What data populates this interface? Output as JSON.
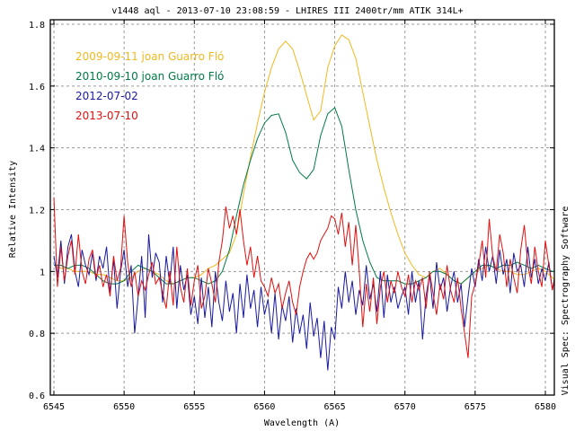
{
  "chart_data": {
    "type": "line",
    "title": "v1448 aql - 2013-07-10 23:08:59 - LHIRES III 2400tr/mm ATIK 314L+",
    "xlabel": "Wavelength (A)",
    "ylabel": "Relative Intensity",
    "side_note": "Visual Spec: Spectrography Software",
    "xlim": [
      6544.75,
      6581.4
    ],
    "ylim": [
      0.6,
      1.8
    ],
    "x_ticks": [
      6545,
      6550,
      6555,
      6560,
      6565,
      6570,
      6575,
      6580
    ],
    "y_ticks": [
      0.6,
      0.8,
      1,
      1.2,
      1.4,
      1.6,
      1.8
    ],
    "y_tick_labels": [
      "0.6",
      "0.8",
      "1",
      "1.2",
      "1.4",
      "1.6",
      "1.8"
    ],
    "grid": true,
    "legend_placement": "top-left",
    "series": [
      {
        "name": "2009-09-11 joan Guarro Fló",
        "color": "#f0b820",
        "x_start": 6545,
        "x_step": 0.5,
        "values": [
          1.02,
          1.01,
          1.01,
          1.0,
          1.0,
          1.0,
          0.99,
          0.99,
          0.98,
          0.97,
          0.97,
          0.98,
          1.0,
          1.01,
          1.0,
          0.99,
          0.97,
          0.96,
          0.97,
          0.98,
          0.98,
          0.99,
          1.01,
          1.02,
          1.04,
          1.06,
          1.12,
          1.25,
          1.37,
          1.48,
          1.58,
          1.66,
          1.72,
          1.745,
          1.72,
          1.65,
          1.57,
          1.49,
          1.52,
          1.66,
          1.73,
          1.765,
          1.75,
          1.69,
          1.58,
          1.47,
          1.36,
          1.27,
          1.19,
          1.12,
          1.06,
          1.02,
          0.99,
          0.98,
          1.0,
          1.01,
          0.99,
          0.97,
          0.96,
          0.98,
          1.0,
          1.01,
          1.02,
          1.01,
          1.0,
          1.0,
          0.99,
          0.99,
          1.0,
          1.01,
          1.0,
          0.98,
          0.96
        ]
      },
      {
        "name": "2010-09-10 joan Guarro Fló",
        "color": "#007a45",
        "x_start": 6545,
        "x_step": 0.5,
        "values": [
          1.02,
          1.02,
          1.01,
          1.02,
          1.02,
          1.01,
          0.99,
          0.97,
          0.96,
          0.96,
          0.97,
          1.0,
          1.02,
          1.01,
          1.0,
          0.98,
          0.96,
          0.96,
          0.97,
          0.98,
          0.98,
          0.97,
          0.96,
          0.97,
          1.0,
          1.07,
          1.18,
          1.28,
          1.36,
          1.43,
          1.48,
          1.505,
          1.51,
          1.45,
          1.36,
          1.32,
          1.3,
          1.33,
          1.44,
          1.51,
          1.53,
          1.47,
          1.33,
          1.2,
          1.1,
          1.03,
          0.98,
          0.97,
          0.97,
          0.97,
          0.96,
          0.96,
          0.97,
          0.98,
          1.0,
          1.0,
          0.99,
          0.97,
          0.96,
          0.98,
          1.0,
          1.02,
          1.02,
          1.01,
          1.02,
          1.02,
          1.03,
          1.02,
          1.01,
          1.02,
          1.01,
          1.0,
          1.0
        ]
      },
      {
        "name": "2012-07-02",
        "color": "#1a1aa0",
        "x_start": 6545,
        "x_step": 0.25,
        "values": [
          1.05,
          0.98,
          1.1,
          0.96,
          1.08,
          1.12,
          1.0,
          0.95,
          1.07,
          1.02,
          0.99,
          1.06,
          0.97,
          1.05,
          1.01,
          1.08,
          0.93,
          1.04,
          0.88,
          1.0,
          1.07,
          0.95,
          1.02,
          0.8,
          0.92,
          1.05,
          0.85,
          1.12,
          0.98,
          1.06,
          1.03,
          0.9,
          1.05,
          0.96,
          1.08,
          0.88,
          1.02,
          0.94,
          0.99,
          0.86,
          0.92,
          0.83,
          0.98,
          0.85,
          0.95,
          0.82,
          1.0,
          0.9,
          0.84,
          0.97,
          0.87,
          0.93,
          0.8,
          0.96,
          0.85,
          0.99,
          0.88,
          0.94,
          0.82,
          0.95,
          0.86,
          0.91,
          0.8,
          0.93,
          0.78,
          0.89,
          0.84,
          0.92,
          0.77,
          0.88,
          0.8,
          0.86,
          0.75,
          0.9,
          0.79,
          0.85,
          0.72,
          0.84,
          0.68,
          0.82,
          0.78,
          0.95,
          0.88,
          1.0,
          0.9,
          0.97,
          0.86,
          0.94,
          0.89,
          1.02,
          0.91,
          0.96,
          0.87,
          1.0,
          0.85,
          0.99,
          0.9,
          0.95,
          0.88,
          0.92,
          0.95,
          0.86,
          1.0,
          0.9,
          0.97,
          0.78,
          0.92,
          0.99,
          0.88,
          1.03,
          0.94,
          0.98,
          0.87,
          0.95,
          1.0,
          0.9,
          0.96,
          0.82,
          0.92,
          1.01,
          0.95,
          1.04,
          0.97,
          1.08,
          1.0,
          1.05,
          0.96,
          1.07,
          0.99,
          1.04,
          0.93,
          1.06,
          1.0,
          1.02,
          0.95,
          1.08,
          0.98,
          1.04,
          0.96,
          1.01,
          0.97,
          1.03,
          0.94,
          1.0,
          0.93
        ]
      },
      {
        "name": "2013-07-10",
        "color": "#e01010",
        "x_start": 6545,
        "x_step": 0.25,
        "values": [
          1.24,
          0.95,
          1.08,
          0.97,
          1.05,
          1.1,
          0.99,
          1.12,
          1.0,
          0.96,
          1.04,
          1.07,
          0.98,
          1.02,
          0.95,
          0.99,
          0.92,
          1.05,
          0.97,
          1.01,
          1.18,
          1.03,
          0.95,
          1.0,
          0.92,
          0.97,
          0.94,
          0.99,
          1.03,
          0.96,
          0.98,
          0.93,
          0.88,
          1.0,
          0.89,
          1.08,
          0.95,
          0.9,
          1.01,
          0.89,
          0.97,
          1.02,
          0.88,
          0.92,
          1.01,
          0.96,
          0.9,
          1.03,
          1.1,
          1.21,
          1.14,
          1.18,
          1.12,
          1.2,
          1.1,
          1.02,
          1.08,
          0.98,
          1.05,
          0.97,
          0.95,
          0.92,
          0.98,
          0.93,
          0.96,
          0.88,
          0.93,
          0.97,
          0.9,
          0.86,
          0.95,
          1.0,
          1.04,
          1.06,
          1.04,
          1.06,
          1.1,
          1.12,
          1.14,
          1.18,
          1.17,
          1.12,
          1.19,
          1.08,
          1.16,
          1.02,
          1.15,
          1.0,
          0.82,
          0.96,
          0.87,
          0.98,
          0.83,
          0.95,
          1.0,
          0.9,
          0.97,
          0.93,
          1.0,
          0.95,
          0.92,
          0.99,
          0.9,
          0.97,
          0.94,
          0.98,
          0.88,
          1.0,
          0.93,
          0.86,
          0.96,
          0.91,
          1.02,
          0.94,
          0.9,
          0.98,
          0.88,
          0.8,
          0.72,
          0.92,
          0.96,
          1.02,
          1.1,
          0.98,
          1.17,
          1.05,
          1.0,
          1.12,
          1.06,
          0.95,
          1.04,
          0.98,
          0.93,
          1.07,
          1.15,
          1.02,
          0.96,
          1.08,
          1.0,
          0.95,
          1.1,
          1.02,
          0.94,
          1.0,
          0.96
        ]
      }
    ]
  }
}
